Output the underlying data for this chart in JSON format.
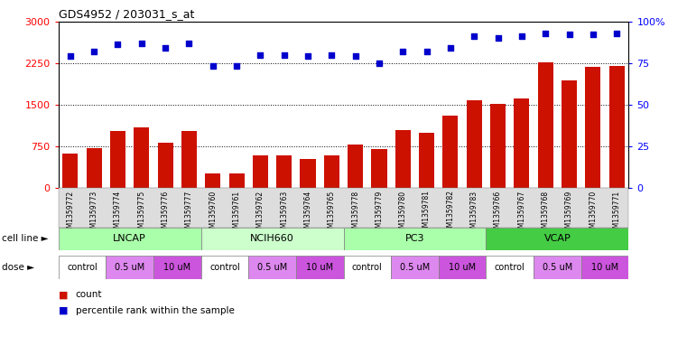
{
  "title": "GDS4952 / 203031_s_at",
  "samples": [
    "GSM1359772",
    "GSM1359773",
    "GSM1359774",
    "GSM1359775",
    "GSM1359776",
    "GSM1359777",
    "GSM1359760",
    "GSM1359761",
    "GSM1359762",
    "GSM1359763",
    "GSM1359764",
    "GSM1359765",
    "GSM1359778",
    "GSM1359779",
    "GSM1359780",
    "GSM1359781",
    "GSM1359782",
    "GSM1359783",
    "GSM1359766",
    "GSM1359767",
    "GSM1359768",
    "GSM1359769",
    "GSM1359770",
    "GSM1359771"
  ],
  "counts": [
    620,
    720,
    1020,
    1100,
    820,
    1020,
    270,
    260,
    590,
    590,
    530,
    590,
    780,
    700,
    1050,
    1000,
    1310,
    1580,
    1520,
    1610,
    2260,
    1930,
    2180,
    2200
  ],
  "percentiles": [
    79,
    82,
    86,
    87,
    84,
    87,
    73,
    73,
    80,
    80,
    79,
    80,
    79,
    75,
    82,
    82,
    84,
    91,
    90,
    91,
    93,
    92,
    92,
    93
  ],
  "cell_lines": [
    {
      "name": "LNCAP",
      "start": 0,
      "end": 6,
      "color": "#aaffaa"
    },
    {
      "name": "NCIH660",
      "start": 6,
      "end": 12,
      "color": "#ccffcc"
    },
    {
      "name": "PC3",
      "start": 12,
      "end": 18,
      "color": "#aaffaa"
    },
    {
      "name": "VCAP",
      "start": 18,
      "end": 24,
      "color": "#44cc44"
    }
  ],
  "doses": [
    {
      "label": "control",
      "start": 0,
      "end": 2,
      "color": "#ffffff"
    },
    {
      "label": "0.5 uM",
      "start": 2,
      "end": 4,
      "color": "#dd88ee"
    },
    {
      "label": "10 uM",
      "start": 4,
      "end": 6,
      "color": "#cc55dd"
    },
    {
      "label": "control",
      "start": 6,
      "end": 8,
      "color": "#ffffff"
    },
    {
      "label": "0.5 uM",
      "start": 8,
      "end": 10,
      "color": "#dd88ee"
    },
    {
      "label": "10 uM",
      "start": 10,
      "end": 12,
      "color": "#cc55dd"
    },
    {
      "label": "control",
      "start": 12,
      "end": 14,
      "color": "#ffffff"
    },
    {
      "label": "0.5 uM",
      "start": 14,
      "end": 16,
      "color": "#dd88ee"
    },
    {
      "label": "10 uM",
      "start": 16,
      "end": 18,
      "color": "#cc55dd"
    },
    {
      "label": "control",
      "start": 18,
      "end": 20,
      "color": "#ffffff"
    },
    {
      "label": "0.5 uM",
      "start": 20,
      "end": 22,
      "color": "#dd88ee"
    },
    {
      "label": "10 uM",
      "start": 22,
      "end": 24,
      "color": "#cc55dd"
    }
  ],
  "bar_color": "#cc1100",
  "dot_color": "#0000cc",
  "left_ylim": [
    0,
    3000
  ],
  "right_ylim": [
    0,
    100
  ],
  "left_yticks": [
    0,
    750,
    1500,
    2250,
    3000
  ],
  "right_yticks": [
    0,
    25,
    50,
    75,
    100
  ],
  "hlines": [
    750,
    1500,
    2250
  ],
  "legend_count": "count",
  "legend_percentile": "percentile rank within the sample",
  "cell_line_label": "cell line",
  "dose_label": "dose"
}
